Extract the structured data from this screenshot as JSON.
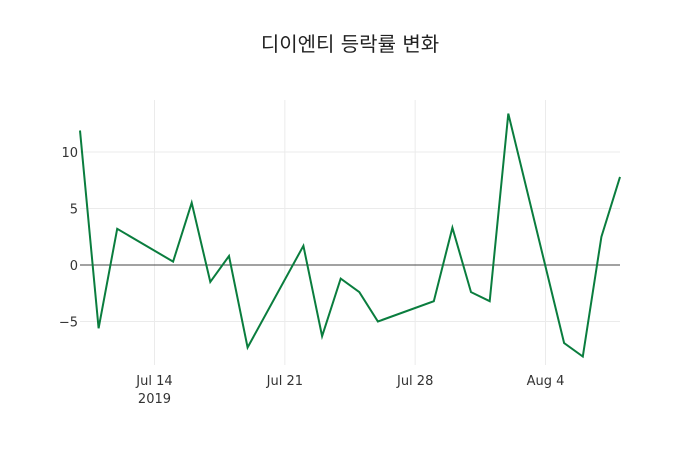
{
  "chart_data": {
    "type": "line",
    "title": "디이엔티 등락률 변화",
    "xlabel": "",
    "ylabel": "",
    "x": [
      "2019-07-10",
      "2019-07-11",
      "2019-07-12",
      "2019-07-15",
      "2019-07-16",
      "2019-07-17",
      "2019-07-18",
      "2019-07-19",
      "2019-07-22",
      "2019-07-23",
      "2019-07-24",
      "2019-07-25",
      "2019-07-26",
      "2019-07-29",
      "2019-07-30",
      "2019-07-31",
      "2019-08-01",
      "2019-08-02",
      "2019-08-05",
      "2019-08-06",
      "2019-08-07",
      "2019-08-08"
    ],
    "series": [
      {
        "name": "등락률",
        "color": "#0a7d3e",
        "values": [
          11.9,
          -5.6,
          3.2,
          0.3,
          5.5,
          -1.5,
          0.8,
          -7.3,
          1.7,
          -6.3,
          -1.2,
          -2.4,
          -5.0,
          -3.2,
          3.3,
          -2.4,
          -3.2,
          13.4,
          -6.9,
          -8.1,
          2.5,
          7.8
        ]
      }
    ],
    "x_ticks": [
      {
        "date": "2019-07-14",
        "label": "Jul 14",
        "sublabel": "2019"
      },
      {
        "date": "2019-07-21",
        "label": "Jul 21",
        "sublabel": ""
      },
      {
        "date": "2019-07-28",
        "label": "Jul 28",
        "sublabel": ""
      },
      {
        "date": "2019-08-04",
        "label": "Aug 4",
        "sublabel": ""
      }
    ],
    "y_ticks": [
      10,
      5,
      0,
      -5
    ],
    "y_tick_labels": [
      "10",
      "5",
      "0",
      "−5"
    ],
    "ylim": [
      -9,
      14.5
    ],
    "grid": true,
    "legend": "none"
  }
}
